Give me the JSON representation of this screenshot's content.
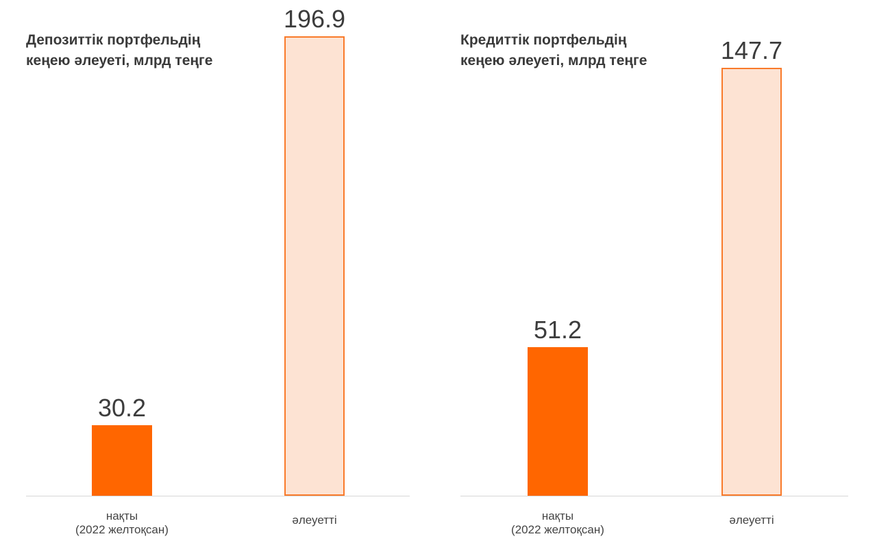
{
  "chart_data": [
    {
      "type": "bar",
      "title": "Депозиттік портфельдің кеңею әлеуеті, млрд теңге",
      "categories": [
        "нақты (2022 желтоқсан)",
        "әлеуетті"
      ],
      "category_lines": [
        [
          "нақты",
          "(2022 желтоқсан)"
        ],
        [
          "әлеуетті"
        ]
      ],
      "values": [
        30.2,
        196.9
      ],
      "value_labels": [
        "30.2",
        "196.9"
      ],
      "ylim": [
        0,
        200
      ],
      "grid": false,
      "xlabel": "",
      "ylabel": ""
    },
    {
      "type": "bar",
      "title": "Кредиттік портфельдің кеңею әлеуеті, млрд теңге",
      "categories": [
        "нақты (2022 желтоқсан)",
        "әлеуетті"
      ],
      "category_lines": [
        [
          "нақты",
          "(2022 желтоқсан)"
        ],
        [
          "әлеуетті"
        ]
      ],
      "values": [
        51.2,
        147.7
      ],
      "value_labels": [
        "51.2",
        "147.7"
      ],
      "ylim": [
        0,
        150
      ],
      "grid": false,
      "xlabel": "",
      "ylabel": ""
    }
  ],
  "colors": {
    "actual": "#ff6600",
    "potential_fill": "#fde3d3",
    "potential_border": "#f97a2a"
  }
}
